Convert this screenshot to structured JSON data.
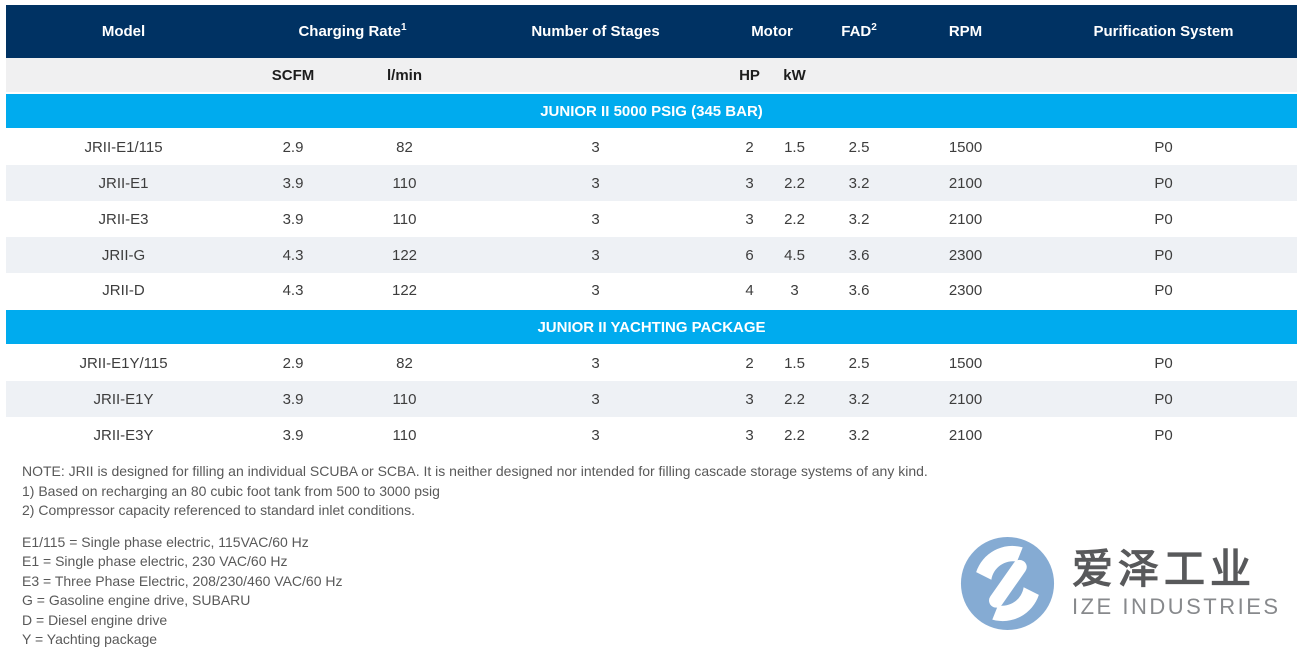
{
  "colors": {
    "navy": "#003263",
    "blue": "#00abee",
    "stripe": "#eef1f5",
    "subheader": "#f0f0f1",
    "logo-blue": "#85abd3"
  },
  "table": {
    "headers": {
      "model": "Model",
      "charging_rate": "Charging Rate",
      "charging_rate_sup": "1",
      "stages": "Number of Stages",
      "motor": "Motor",
      "fad": "FAD",
      "fad_sup": "2",
      "rpm": "RPM",
      "purification": "Purification System"
    },
    "subheaders": {
      "scfm": "SCFM",
      "lmin": "l/min",
      "hp": "HP",
      "kw": "kW"
    },
    "sections": [
      {
        "title": "JUNIOR II 5000 PSIG (345 BAR)",
        "rows": [
          [
            "JRII-E1/115",
            "2.9",
            "82",
            "3",
            "2",
            "1.5",
            "2.5",
            "1500",
            "P0"
          ],
          [
            "JRII-E1",
            "3.9",
            "110",
            "3",
            "3",
            "2.2",
            "3.2",
            "2100",
            "P0"
          ],
          [
            "JRII-E3",
            "3.9",
            "110",
            "3",
            "3",
            "2.2",
            "3.2",
            "2100",
            "P0"
          ],
          [
            "JRII-G",
            "4.3",
            "122",
            "3",
            "6",
            "4.5",
            "3.6",
            "2300",
            "P0"
          ],
          [
            "JRII-D",
            "4.3",
            "122",
            "3",
            "4",
            "3",
            "3.6",
            "2300",
            "P0"
          ]
        ]
      },
      {
        "title": "JUNIOR II YACHTING PACKAGE",
        "rows": [
          [
            "JRII-E1Y/115",
            "2.9",
            "82",
            "3",
            "2",
            "1.5",
            "2.5",
            "1500",
            "P0"
          ],
          [
            "JRII-E1Y",
            "3.9",
            "110",
            "3",
            "3",
            "2.2",
            "3.2",
            "2100",
            "P0"
          ],
          [
            "JRII-E3Y",
            "3.9",
            "110",
            "3",
            "3",
            "2.2",
            "3.2",
            "2100",
            "P0"
          ]
        ]
      }
    ]
  },
  "notes": [
    "NOTE: JRII is designed for filling an individual SCUBA or SCBA. It is neither designed nor intended for filling cascade storage systems of any kind.",
    "1) Based on recharging an 80 cubic foot tank from 500 to 3000 psig",
    "2) Compressor capacity referenced to standard inlet conditions."
  ],
  "legend": [
    "E1/115 = Single phase electric, 115VAC/60 Hz",
    "E1 = Single phase electric, 230 VAC/60 Hz",
    "E3 = Three Phase Electric, 208/230/460 VAC/60 Hz",
    "G = Gasoline engine drive, SUBARU",
    "D = Diesel engine drive",
    "Y = Yachting package"
  ],
  "logo": {
    "cn": "爱泽工业",
    "en": "IZE INDUSTRIES"
  }
}
